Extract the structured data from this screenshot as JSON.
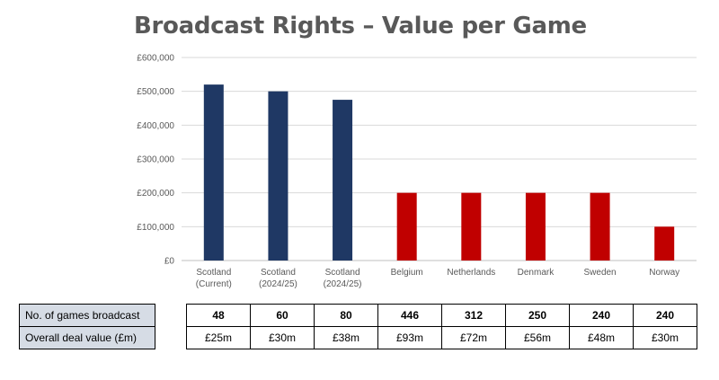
{
  "chart_data": {
    "type": "bar",
    "title": "Broadcast Rights – Value per Game",
    "categories": [
      [
        "Scotland",
        "(Current)"
      ],
      [
        "Scotland",
        "(2024/25)"
      ],
      [
        "Scotland",
        "(2024/25)"
      ],
      [
        "Belgium"
      ],
      [
        "Netherlands"
      ],
      [
        "Denmark"
      ],
      [
        "Sweden"
      ],
      [
        "Norway"
      ]
    ],
    "values": [
      520000,
      500000,
      475000,
      200000,
      200000,
      200000,
      200000,
      100000
    ],
    "bar_colors": [
      "#1f3864",
      "#1f3864",
      "#1f3864",
      "#c00000",
      "#c00000",
      "#c00000",
      "#c00000",
      "#c00000"
    ],
    "ylim": [
      0,
      600000
    ],
    "yticks": [
      0,
      100000,
      200000,
      300000,
      400000,
      500000,
      600000
    ],
    "ytick_labels": [
      "£0",
      "£100,000",
      "£200,000",
      "£300,000",
      "£400,000",
      "£500,000",
      "£600,000"
    ],
    "xlabel": "",
    "ylabel": "",
    "grid": true
  },
  "table": {
    "row_labels": [
      "No. of games broadcast",
      "Overall deal value (£m)"
    ],
    "games": [
      "48",
      "60",
      "80",
      "446",
      "312",
      "250",
      "240",
      "240"
    ],
    "deal_values": [
      "£25m",
      "£30m",
      "£38m",
      "£93m",
      "£72m",
      "£56m",
      "£48m",
      "£30m"
    ]
  },
  "colors": {
    "scotland": "#1f3864",
    "others": "#c00000",
    "label_fill": "#d6dce5",
    "title": "#595959"
  }
}
